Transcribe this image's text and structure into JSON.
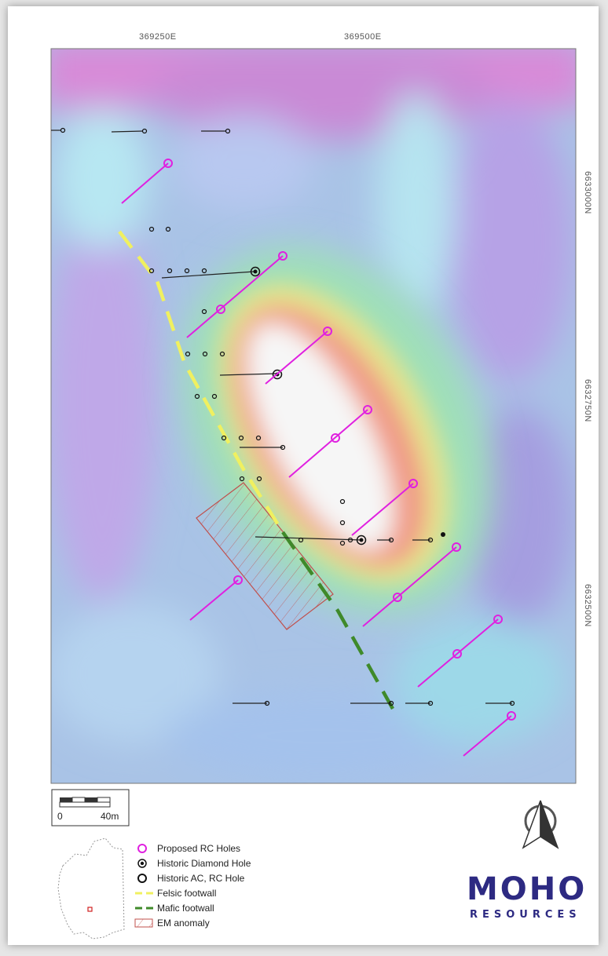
{
  "grid": {
    "easting": [
      "369250E",
      "369500E"
    ],
    "northing": [
      "6633000N",
      "6632750N",
      "6632500N"
    ]
  },
  "scale_bar": {
    "start_label": "0",
    "end_label": "40m"
  },
  "north_arrow": {
    "icon": "north-arrow-icon"
  },
  "legend": [
    {
      "symbol": "magenta-ring",
      "label": "Proposed RC Holes",
      "color": "#e020e0"
    },
    {
      "symbol": "black-bullseye",
      "label": "Historic Diamond Hole",
      "color": "#111111"
    },
    {
      "symbol": "black-ring",
      "label": "Historic AC, RC Hole",
      "color": "#111111"
    },
    {
      "symbol": "yellow-dash",
      "label": "Felsic footwall",
      "color": "#f2f25a"
    },
    {
      "symbol": "green-dash",
      "label": "Mafic footwall",
      "color": "#3f8f2a"
    },
    {
      "symbol": "hatched-box",
      "label": "EM anomaly",
      "color": "#c0504d"
    }
  ],
  "logo": {
    "name": "MOHO",
    "sub": "RESOURCES"
  }
}
